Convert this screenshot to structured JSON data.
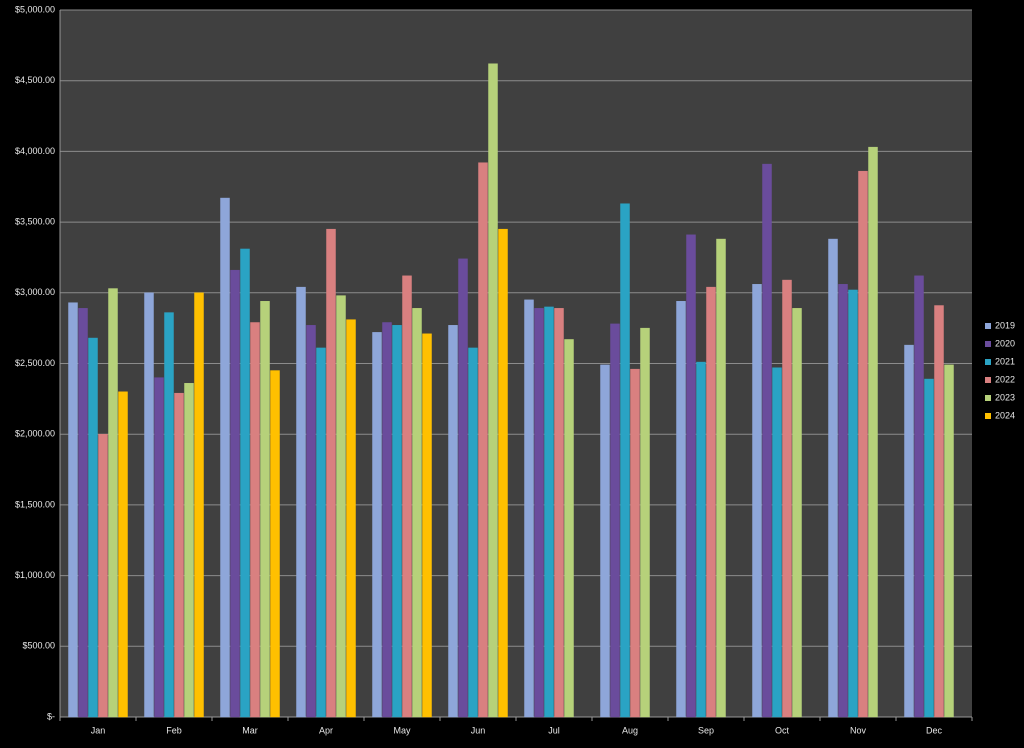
{
  "chart_data": {
    "type": "bar",
    "categories": [
      "Jan",
      "Feb",
      "Mar",
      "Apr",
      "May",
      "Jun",
      "Jul",
      "Aug",
      "Sep",
      "Oct",
      "Nov",
      "Dec"
    ],
    "series": [
      {
        "name": "2019",
        "color": "#8ea6d9",
        "values": [
          2930,
          3000,
          3670,
          3040,
          2720,
          2770,
          2950,
          2490,
          2940,
          3060,
          3380,
          2630
        ]
      },
      {
        "name": "2020",
        "color": "#6a4c9c",
        "values": [
          2890,
          2400,
          3160,
          2770,
          2790,
          3240,
          2890,
          2780,
          3410,
          3910,
          3060,
          3120
        ]
      },
      {
        "name": "2021",
        "color": "#2aa3c4",
        "values": [
          2680,
          2860,
          3310,
          2610,
          2770,
          2610,
          2900,
          3630,
          2510,
          2470,
          3020,
          2390
        ]
      },
      {
        "name": "2022",
        "color": "#d98080",
        "values": [
          2000,
          2290,
          2790,
          3450,
          3120,
          3920,
          2890,
          2460,
          3040,
          3090,
          3860,
          2910
        ]
      },
      {
        "name": "2023",
        "color": "#b6d17a",
        "values": [
          3030,
          2360,
          2940,
          2980,
          2890,
          4620,
          2670,
          2750,
          3380,
          2890,
          4030,
          2490
        ]
      },
      {
        "name": "2024",
        "color": "#ffc000",
        "values": [
          2300,
          3000,
          2450,
          2810,
          2710,
          3450,
          null,
          null,
          null,
          null,
          null,
          null
        ]
      }
    ],
    "ylim": [
      0,
      5000
    ],
    "yticks": [
      {
        "value": 0,
        "label": "$-"
      },
      {
        "value": 500,
        "label": "$500.00"
      },
      {
        "value": 1000,
        "label": "$1,000.00"
      },
      {
        "value": 1500,
        "label": "$1,500.00"
      },
      {
        "value": 2000,
        "label": "$2,000.00"
      },
      {
        "value": 2500,
        "label": "$2,500.00"
      },
      {
        "value": 3000,
        "label": "$3,000.00"
      },
      {
        "value": 3500,
        "label": "$3,500.00"
      },
      {
        "value": 4000,
        "label": "$4,000.00"
      },
      {
        "value": 4500,
        "label": "$4,500.00"
      },
      {
        "value": 5000,
        "label": "$5,000.00"
      }
    ],
    "grid": true,
    "legend": "right"
  }
}
